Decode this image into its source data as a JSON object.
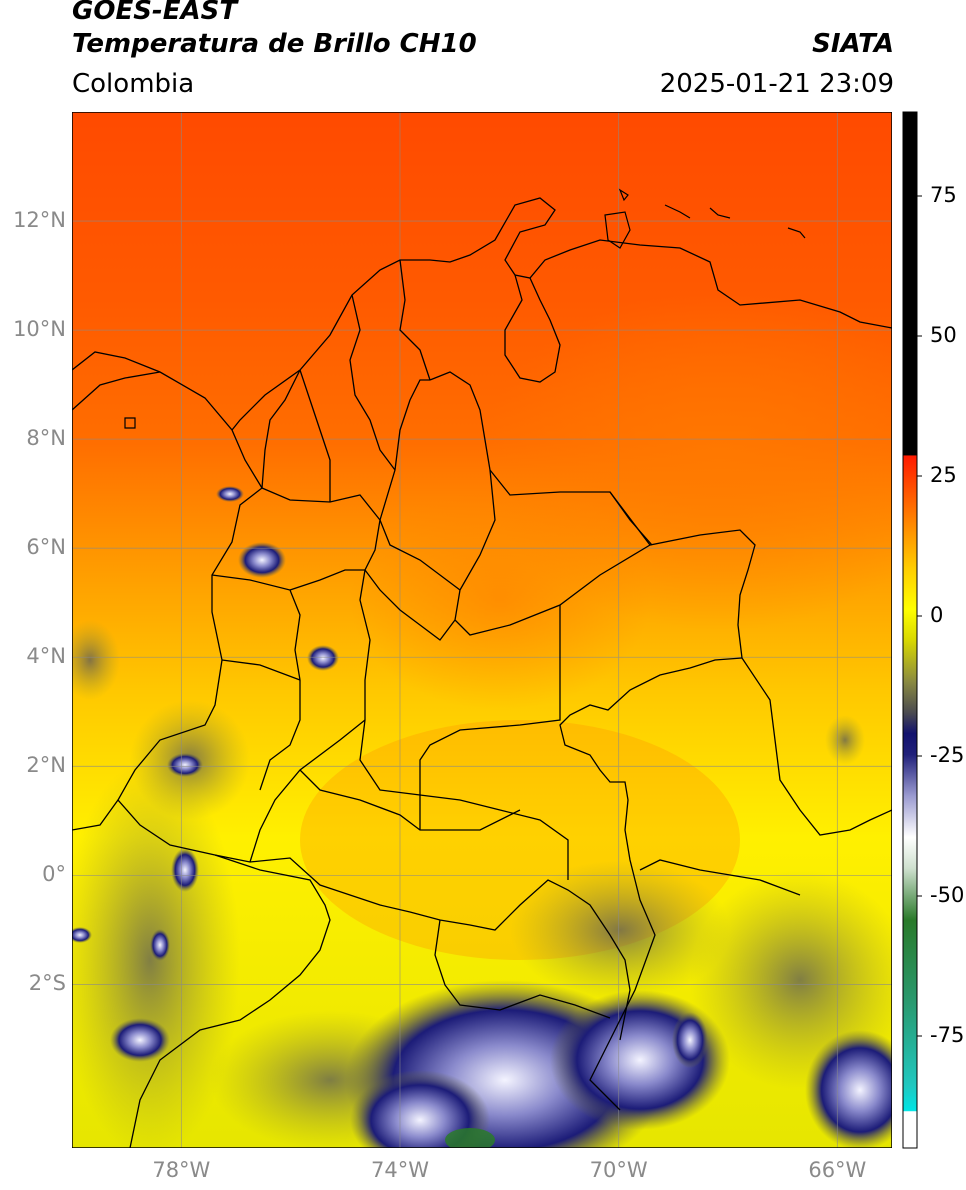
{
  "header": {
    "satellite": "GOES-EAST",
    "product": "Temperatura de Brillo CH10",
    "institution": "SIATA",
    "region": "Colombia",
    "timestamp": "2025-01-21 23:09"
  },
  "map": {
    "lon_range": [
      -80,
      -65
    ],
    "lat_range": [
      -5,
      14
    ],
    "lat_labels": [
      {
        "value": 12,
        "text": "12°N"
      },
      {
        "value": 10,
        "text": "10°N"
      },
      {
        "value": 8,
        "text": "8°N"
      },
      {
        "value": 6,
        "text": "6°N"
      },
      {
        "value": 4,
        "text": "4°N"
      },
      {
        "value": 2,
        "text": "2°N"
      },
      {
        "value": 0,
        "text": "0°"
      },
      {
        "value": -2,
        "text": "2°S"
      }
    ],
    "lon_labels": [
      {
        "value": -78,
        "text": "78°W"
      },
      {
        "value": -74,
        "text": "74°W"
      },
      {
        "value": -70,
        "text": "70°W"
      },
      {
        "value": -66,
        "text": "66°W"
      }
    ],
    "grid": true
  },
  "colorbar": {
    "range": [
      -95,
      90
    ],
    "ticks": [
      {
        "value": 75,
        "text": "75"
      },
      {
        "value": 50,
        "text": "50"
      },
      {
        "value": 25,
        "text": "25"
      },
      {
        "value": 0,
        "text": "0"
      },
      {
        "value": -25,
        "text": "-25"
      },
      {
        "value": -50,
        "text": "-50"
      },
      {
        "value": -75,
        "text": "-75"
      }
    ],
    "colors": {
      "black": "#000000",
      "red": "#ff1a00",
      "orange": "#ff8c00",
      "yellow": "#ffff00",
      "olive": "#7a7a3a",
      "navy": "#12126e",
      "white": "#ffffff",
      "green": "#1f7a1f",
      "teal": "#1fc8c0",
      "cyan": "#00ffff"
    }
  }
}
